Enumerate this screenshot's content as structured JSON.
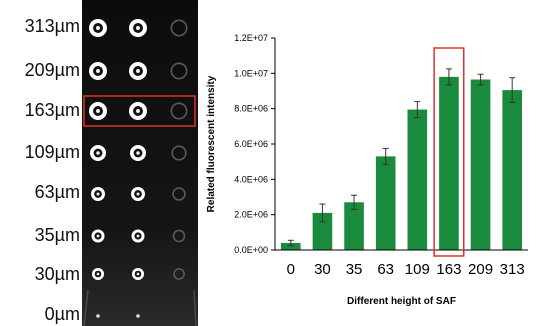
{
  "panel_a": {
    "row_labels": [
      "313µm",
      "209µm",
      "163µm",
      "109µm",
      "63µm",
      "35µm",
      "30µm",
      "0µm"
    ],
    "highlight_row": "163µm",
    "highlight_color": "#e0302a"
  },
  "chart_data": {
    "type": "bar",
    "xlabel": "Different height of SAF",
    "ylabel": "Related fluorescent intensity",
    "categories": [
      "0",
      "30",
      "35",
      "63",
      "109",
      "163",
      "209",
      "313"
    ],
    "values": [
      400000,
      2100000,
      2700000,
      5300000,
      7950000,
      9800000,
      9650000,
      9050000
    ],
    "errors": [
      150000,
      500000,
      400000,
      450000,
      450000,
      450000,
      300000,
      700000
    ],
    "ylim": [
      0,
      12000000
    ],
    "yticks": [
      "0.0E+00",
      "2.0E+06",
      "4.0E+06",
      "6.0E+06",
      "8.0E+06",
      "1.0E+07",
      "1.2E+07"
    ],
    "bar_color": "#1a8a3c",
    "highlight_category": "163",
    "highlight_color": "#e0302a"
  }
}
